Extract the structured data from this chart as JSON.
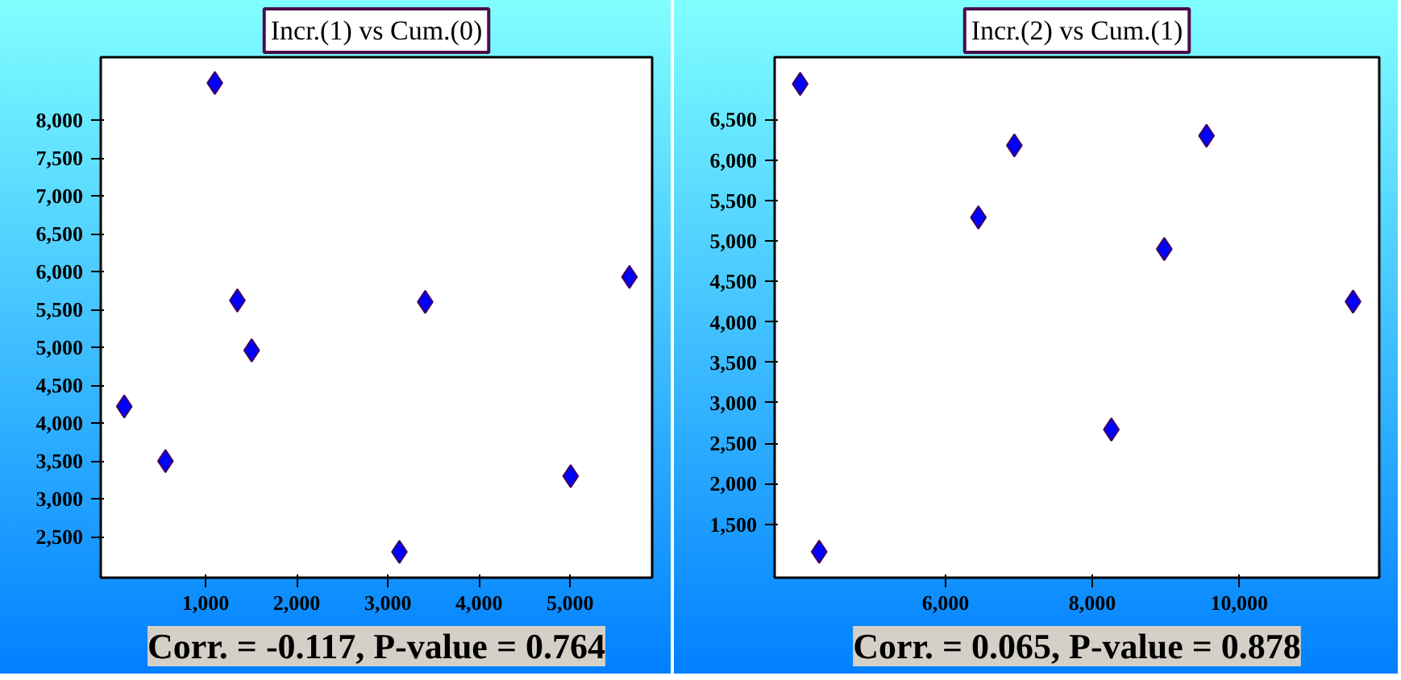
{
  "chart_data": [
    {
      "type": "scatter",
      "title": "Incr.(1) vs Cum.(0)",
      "annotations": [
        "Corr. = -0.117, P-value = 0.764"
      ],
      "marker": "diamond",
      "grid": false,
      "x": [
        108,
        560,
        1102,
        1349,
        1506,
        3127,
        3410,
        5006,
        5651
      ],
      "series": [
        {
          "color": "#0000ff",
          "values": [
            4220,
            3500,
            8490,
            5620,
            4960,
            2300,
            5600,
            3300,
            5930
          ]
        }
      ],
      "xlim": [
        -150,
        5900
      ],
      "xticks": [
        {
          "value": 1000,
          "label": "1,000"
        },
        {
          "value": 2000,
          "label": "2,000"
        },
        {
          "value": 3000,
          "label": "3,000"
        },
        {
          "value": 4000,
          "label": "4,000"
        },
        {
          "value": 5000,
          "label": "5,000"
        }
      ],
      "ylim": [
        1960,
        8830
      ],
      "yticks": [
        {
          "value": 2500,
          "label": "2,500"
        },
        {
          "value": 3000,
          "label": "3,000"
        },
        {
          "value": 3500,
          "label": "3,500"
        },
        {
          "value": 4000,
          "label": "4,000"
        },
        {
          "value": 4500,
          "label": "4,500"
        },
        {
          "value": 5000,
          "label": "5,000"
        },
        {
          "value": 5500,
          "label": "5,500"
        },
        {
          "value": 6000,
          "label": "6,000"
        },
        {
          "value": 6500,
          "label": "6,500"
        },
        {
          "value": 7000,
          "label": "7,000"
        },
        {
          "value": 7500,
          "label": "7,500"
        },
        {
          "value": 8000,
          "label": "8,000"
        }
      ]
    },
    {
      "type": "scatter",
      "title": "Incr.(2) vs Cum.(1)",
      "annotations": [
        "Corr. = 0.065, P-value = 0.878"
      ],
      "marker": "diamond",
      "grid": false,
      "x": [
        4018,
        4277,
        6447,
        6937,
        8259,
        8980,
        9556,
        11553
      ],
      "series": [
        {
          "color": "#0000ff",
          "values": [
            6940,
            1160,
            5290,
            6180,
            2670,
            4900,
            6300,
            4250
          ]
        }
      ],
      "xlim": [
        3670,
        11910
      ],
      "xticks": [
        {
          "value": 6000,
          "label": "6,000"
        },
        {
          "value": 8000,
          "label": "8,000"
        },
        {
          "value": 10000,
          "label": "10,000"
        }
      ],
      "ylim": [
        840,
        7270
      ],
      "yticks": [
        {
          "value": 1500,
          "label": "1,500"
        },
        {
          "value": 2000,
          "label": "2,000"
        },
        {
          "value": 2500,
          "label": "2,500"
        },
        {
          "value": 3000,
          "label": "3,000"
        },
        {
          "value": 3500,
          "label": "3,500"
        },
        {
          "value": 4000,
          "label": "4,000"
        },
        {
          "value": 4500,
          "label": "4,500"
        },
        {
          "value": 5000,
          "label": "5,000"
        },
        {
          "value": 5500,
          "label": "5,500"
        },
        {
          "value": 6000,
          "label": "6,000"
        },
        {
          "value": 6500,
          "label": "6,500"
        }
      ]
    }
  ]
}
